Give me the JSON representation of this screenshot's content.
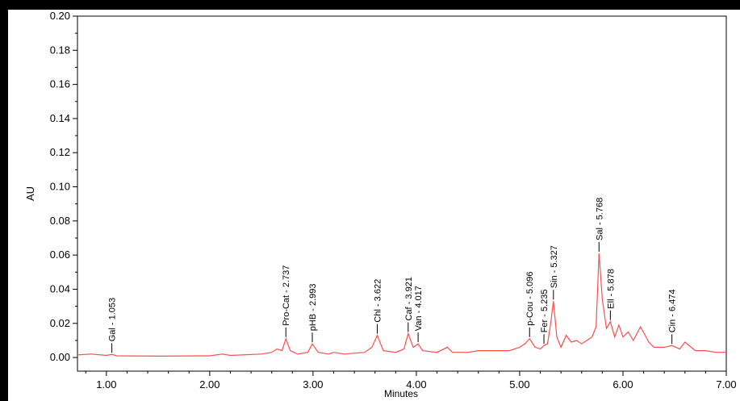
{
  "chart_data": {
    "type": "line",
    "xlabel": "Minutes",
    "ylabel": "AU",
    "xlim": [
      0.72,
      7.0
    ],
    "ylim": [
      -0.008,
      0.2
    ],
    "x_ticks": [
      "1.00",
      "2.00",
      "3.00",
      "4.00",
      "5.00",
      "6.00",
      "7.00"
    ],
    "y_ticks": [
      "0.00",
      "0.02",
      "0.04",
      "0.06",
      "0.08",
      "0.10",
      "0.12",
      "0.14",
      "0.16",
      "0.18",
      "0.20"
    ],
    "line_color": "#ff4d4d",
    "series": [
      {
        "x": [
          0.72,
          0.85,
          1.0,
          1.053,
          1.1,
          1.5,
          2.0,
          2.12,
          2.2,
          2.5,
          2.6,
          2.65,
          2.7,
          2.737,
          2.78,
          2.85,
          2.95,
          2.993,
          3.05,
          3.15,
          3.2,
          3.3,
          3.5,
          3.57,
          3.622,
          3.68,
          3.8,
          3.88,
          3.921,
          3.97,
          4.017,
          4.06,
          4.2,
          4.3,
          4.35,
          4.5,
          4.6,
          4.7,
          4.8,
          4.9,
          5.0,
          5.05,
          5.096,
          5.15,
          5.2,
          5.235,
          5.27,
          5.3,
          5.327,
          5.36,
          5.4,
          5.45,
          5.5,
          5.55,
          5.6,
          5.65,
          5.7,
          5.74,
          5.768,
          5.8,
          5.84,
          5.878,
          5.92,
          5.96,
          6.0,
          6.05,
          6.1,
          6.17,
          6.25,
          6.3,
          6.35,
          6.4,
          6.474,
          6.55,
          6.6,
          6.7,
          6.8,
          6.9,
          7.0
        ],
        "y": [
          0.0015,
          0.002,
          0.0012,
          0.0018,
          0.001,
          0.0008,
          0.001,
          0.002,
          0.0012,
          0.002,
          0.003,
          0.005,
          0.004,
          0.011,
          0.004,
          0.002,
          0.003,
          0.008,
          0.003,
          0.002,
          0.003,
          0.002,
          0.003,
          0.006,
          0.013,
          0.004,
          0.003,
          0.005,
          0.014,
          0.006,
          0.008,
          0.004,
          0.003,
          0.006,
          0.003,
          0.003,
          0.004,
          0.004,
          0.004,
          0.004,
          0.006,
          0.008,
          0.011,
          0.006,
          0.005,
          0.007,
          0.008,
          0.02,
          0.033,
          0.012,
          0.006,
          0.013,
          0.009,
          0.01,
          0.008,
          0.01,
          0.012,
          0.018,
          0.061,
          0.034,
          0.017,
          0.021,
          0.012,
          0.019,
          0.012,
          0.015,
          0.01,
          0.018,
          0.009,
          0.006,
          0.006,
          0.006,
          0.007,
          0.005,
          0.009,
          0.004,
          0.004,
          0.003,
          0.003
        ]
      }
    ],
    "peaks": [
      {
        "label": "Gal - 1.053",
        "x": 1.053,
        "y": 0.0018
      },
      {
        "label": "Pro-Cat - 2.737",
        "x": 2.737,
        "y": 0.011
      },
      {
        "label": "pHB - 2.993",
        "x": 2.993,
        "y": 0.008
      },
      {
        "label": "Chl - 3.622",
        "x": 3.622,
        "y": 0.013
      },
      {
        "label": "Caf - 3.921",
        "x": 3.921,
        "y": 0.014
      },
      {
        "label": "Van - 4.017",
        "x": 4.017,
        "y": 0.008
      },
      {
        "label": "p-Cou - 5.096",
        "x": 5.096,
        "y": 0.011
      },
      {
        "label": "Fer - 5.235",
        "x": 5.235,
        "y": 0.007
      },
      {
        "label": "Sin - 5.327",
        "x": 5.327,
        "y": 0.033
      },
      {
        "label": "Sal - 5.768",
        "x": 5.768,
        "y": 0.061
      },
      {
        "label": "Ell - 5.878",
        "x": 5.878,
        "y": 0.021
      },
      {
        "label": "Cin - 6.474",
        "x": 6.474,
        "y": 0.007
      }
    ]
  }
}
